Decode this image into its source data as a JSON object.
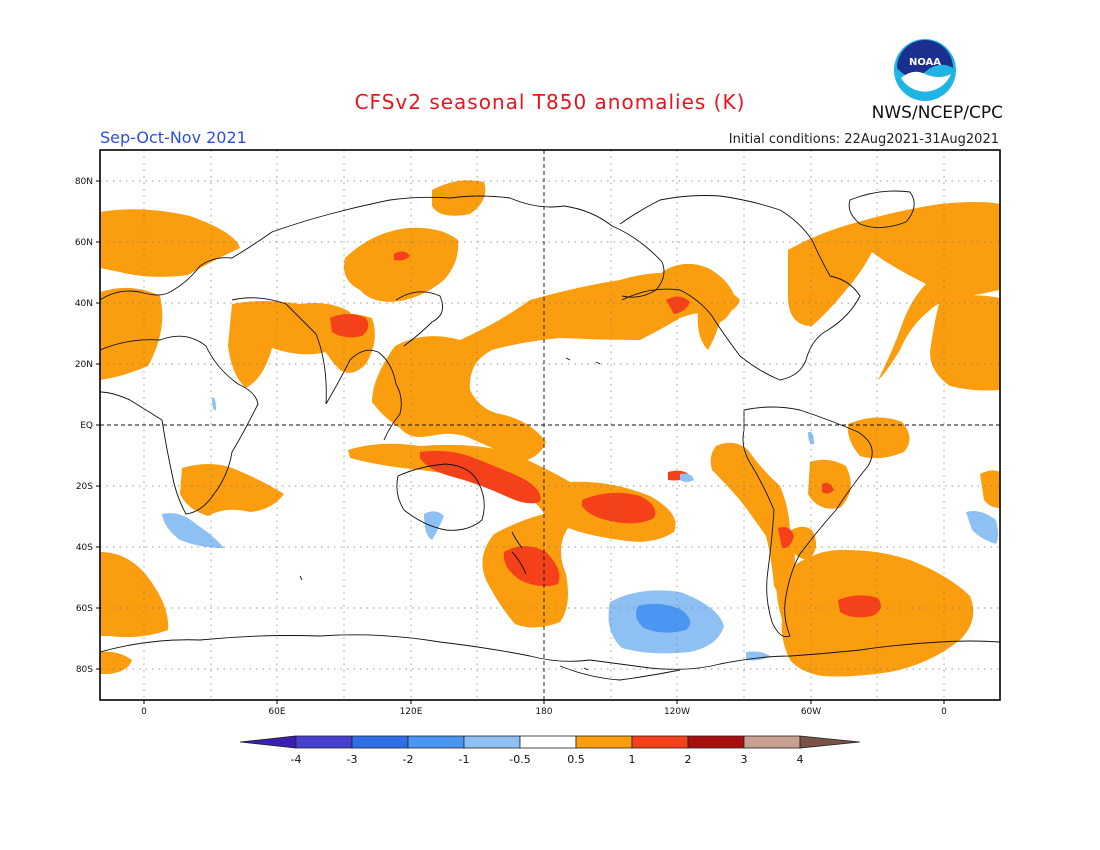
{
  "header": {
    "title": "CFSv2 seasonal T850 anomalies (K)",
    "season": "Sep-Oct-Nov 2021",
    "agency": "NWS/NCEP/CPC",
    "initial_conditions": "Initial conditions: 22Aug2021-31Aug2021",
    "logo_text": "NOAA"
  },
  "map": {
    "lat_labels": [
      "80N",
      "60N",
      "40N",
      "20N",
      "EQ",
      "20S",
      "40S",
      "60S",
      "80S"
    ],
    "lon_labels": [
      "0",
      "60E",
      "120E",
      "180",
      "120W",
      "60W",
      "0"
    ]
  },
  "colorbar": {
    "labels": [
      "-4",
      "-3",
      "-2",
      "-1",
      "-0.5",
      "0.5",
      "1",
      "2",
      "3",
      "4"
    ],
    "colors": [
      "#3b1fb0",
      "#4640d0",
      "#2e6ee6",
      "#4a96f2",
      "#8ec0f4",
      "#ffffff",
      "#fa9e10",
      "#f5411a",
      "#a81010",
      "#c8a094",
      "#7a5248"
    ]
  },
  "colors": {
    "warm1": "#fa9e10",
    "warm2": "#f5411a",
    "cool1": "#8ec0f4",
    "cool2": "#4a96f2",
    "title": "#e8141c",
    "season": "#2d4fe0"
  }
}
